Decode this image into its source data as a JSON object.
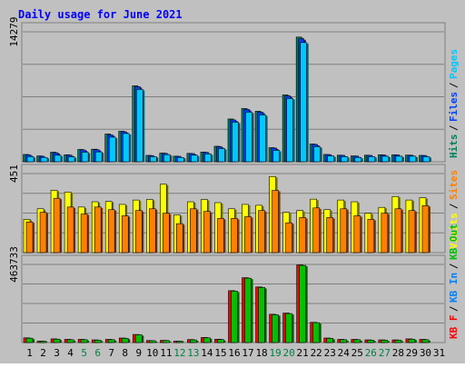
{
  "chart_data": {
    "type": "bar",
    "title": "Daily usage for June 2021",
    "categories": [
      "1",
      "2",
      "3",
      "4",
      "5",
      "6",
      "7",
      "8",
      "9",
      "10",
      "11",
      "12",
      "13",
      "14",
      "15",
      "16",
      "17",
      "18",
      "19",
      "20",
      "21",
      "22",
      "23",
      "24",
      "25",
      "26",
      "27",
      "28",
      "29",
      "30",
      "31"
    ],
    "weekend_days": [
      5,
      6,
      12,
      13,
      19,
      20,
      26,
      27
    ],
    "colors": {
      "background": "#c0c0c0",
      "plot": "#ffffff",
      "gridline": "#000000",
      "title": "#0000ff",
      "weekday_label": "#000000",
      "weekend_label": "#008040",
      "hits": "#00805c",
      "files": "#0040ff",
      "pages": "#00c8ff",
      "visits": "#ffff00",
      "sites": "#ff8000",
      "kb_f": "#ff0000",
      "kb_in": "#0080ff",
      "kb_out": "#00c000"
    },
    "panels": [
      {
        "name": "requests",
        "ymax_label": "14279",
        "ymax": 14279,
        "legend": [
          {
            "text": "Hits",
            "color": "#00805c"
          },
          {
            "text": "Files",
            "color": "#0040ff"
          },
          {
            "text": "Pages",
            "color": "#00c8ff"
          }
        ],
        "series": [
          {
            "name": "Hits",
            "color": "#00805c",
            "values": [
              800,
              640,
              1050,
              760,
              1350,
              1380,
              3050,
              3350,
              8350,
              700,
              950,
              610,
              920,
              1060,
              1700,
              4700,
              5850,
              5550,
              1550,
              7350,
              13700,
              1950,
              800,
              720,
              640,
              720,
              760,
              760,
              730,
              700,
              0
            ]
          },
          {
            "name": "Files",
            "color": "#0040ff",
            "values": [
              750,
              600,
              990,
              730,
              1300,
              1330,
              2950,
              3300,
              8250,
              680,
              920,
              590,
              900,
              1030,
              1650,
              4600,
              5750,
              5450,
              1500,
              7250,
              13500,
              1900,
              780,
              700,
              620,
              700,
              740,
              740,
              710,
              680,
              0
            ]
          },
          {
            "name": "Pages",
            "color": "#00c8ff",
            "values": [
              560,
              470,
              720,
              540,
              1050,
              1080,
              2700,
              3100,
              7950,
              560,
              780,
              470,
              720,
              860,
              1450,
              4350,
              5450,
              5150,
              1250,
              6950,
              13100,
              1650,
              640,
              560,
              470,
              560,
              600,
              610,
              610,
              560,
              0
            ]
          }
        ]
      },
      {
        "name": "visitors",
        "ymax_label": "451",
        "ymax": 451,
        "legend": [
          {
            "text": "Visits",
            "color": "#ffff00"
          },
          {
            "text": "Sites",
            "color": "#ff8000"
          }
        ],
        "series": [
          {
            "name": "Visits",
            "color": "#ffff00",
            "values": [
              190,
              250,
              355,
              345,
              260,
              290,
              292,
              275,
              300,
              303,
              390,
              215,
              290,
              303,
              285,
              250,
              275,
              270,
              434,
              230,
              240,
              305,
              245,
              300,
              290,
              225,
              258,
              320,
              300,
              313,
              0
            ]
          },
          {
            "name": "Sites",
            "color": "#ff8000",
            "values": [
              175,
              230,
              310,
              260,
              220,
              260,
              245,
              210,
              240,
              250,
              225,
              165,
              250,
              235,
              195,
              195,
              205,
              240,
              355,
              170,
              200,
              255,
              200,
              250,
              210,
              190,
              225,
              250,
              240,
              268,
              0
            ]
          }
        ]
      },
      {
        "name": "traffic",
        "ymax_label": "463733",
        "ymax": 463733,
        "legend": [
          {
            "text": "KB F",
            "color": "#ff0000"
          },
          {
            "text": "KB In",
            "color": "#0080ff"
          },
          {
            "text": "KB Out",
            "color": "#00c000"
          }
        ],
        "series": [
          {
            "name": "KB F",
            "color": "#ff0000",
            "values": [
              28000,
              9000,
              22000,
              19000,
              19000,
              16000,
              19000,
              27000,
              48000,
              12000,
              13000,
              9000,
              18000,
              30000,
              20000,
              308000,
              385000,
              330000,
              168000,
              175000,
              461000,
              120000,
              27000,
              19000,
              19000,
              16000,
              16000,
              16000,
              22000,
              19000,
              0
            ]
          },
          {
            "name": "KB Out",
            "color": "#00c000",
            "values": [
              26000,
              8000,
              20000,
              17000,
              17000,
              14000,
              17000,
              25000,
              46000,
              11000,
              12000,
              8000,
              16000,
              28000,
              18000,
              305000,
              382000,
              327000,
              165000,
              172000,
              458000,
              118000,
              25000,
              17000,
              17000,
              14000,
              14000,
              14000,
              20000,
              17000,
              0
            ]
          }
        ]
      }
    ]
  }
}
